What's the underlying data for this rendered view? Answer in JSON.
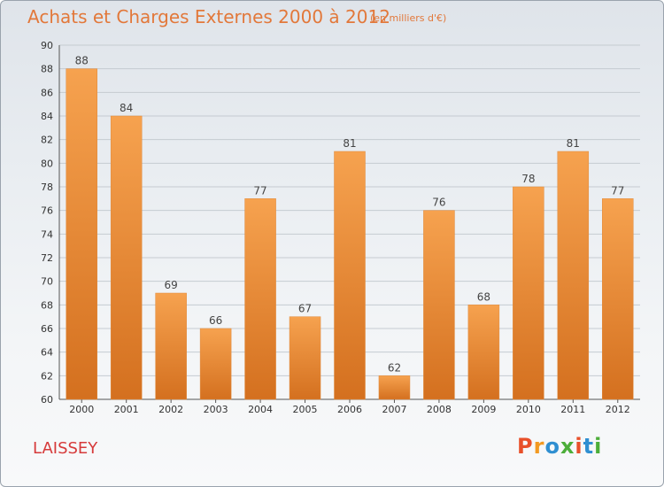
{
  "header": {
    "title": "Achats et Charges Externes 2000 à 2012",
    "subtitle": "(en milliers d'€)"
  },
  "footer": {
    "place": "LAISSEY",
    "logo_text": "Proxiti",
    "logo_colors": [
      "#e8502a",
      "#f29a22",
      "#2f8fd1",
      "#4cae3a",
      "#e8502a",
      "#2f8fd1",
      "#4cae3a"
    ]
  },
  "colors": {
    "bar_light": "#f6a24f",
    "bar_dark": "#d4701f",
    "accent": "#e2783a",
    "grid": "#c5cbd1"
  },
  "chart_data": {
    "type": "bar",
    "title": "Achats et Charges Externes 2000 à 2012",
    "subtitle": "(en milliers d'€)",
    "xlabel": "",
    "ylabel": "",
    "ylim": [
      60,
      90
    ],
    "yticks": [
      60,
      62,
      64,
      66,
      68,
      70,
      72,
      74,
      76,
      78,
      80,
      82,
      84,
      86,
      88,
      90
    ],
    "grid": true,
    "categories": [
      "2000",
      "2001",
      "2002",
      "2003",
      "2004",
      "2005",
      "2006",
      "2007",
      "2008",
      "2009",
      "2010",
      "2011",
      "2012"
    ],
    "values": [
      88,
      84,
      69,
      66,
      77,
      67,
      81,
      62,
      76,
      68,
      78,
      81,
      77
    ]
  }
}
